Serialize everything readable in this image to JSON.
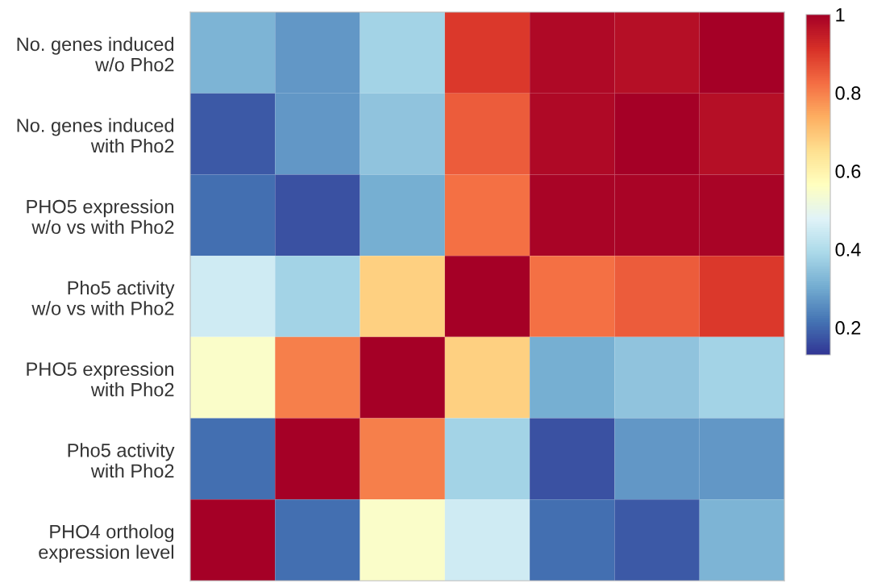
{
  "chart_data": {
    "type": "heatmap",
    "categories": [
      null,
      null,
      null,
      null,
      null,
      null,
      null
    ],
    "y_categories": [
      "No. genes induced\nw/o Pho2",
      "No. genes induced\nwith Pho2",
      "PHO5 expression\nw/o vs with Pho2",
      "Pho5 activity\nw/o vs with Pho2",
      "PHO5 expression\nwith Pho2",
      "Pho5 activity\nwith Pho2",
      "PHO4 ortholog\nexpression level"
    ],
    "cells": [
      [
        0.32,
        0.27,
        0.38,
        0.9,
        0.98,
        0.97,
        1.0
      ],
      [
        0.18,
        0.27,
        0.35,
        0.85,
        0.98,
        1.0,
        0.97
      ],
      [
        0.21,
        0.17,
        0.31,
        0.82,
        0.99,
        0.99,
        0.99
      ],
      [
        0.45,
        0.38,
        0.68,
        1.0,
        0.82,
        0.85,
        0.9
      ],
      [
        0.55,
        0.8,
        1.0,
        0.68,
        0.31,
        0.35,
        0.38
      ],
      [
        0.21,
        1.0,
        0.8,
        0.38,
        0.17,
        0.27,
        0.27
      ],
      [
        1.0,
        0.21,
        0.55,
        0.45,
        0.21,
        0.18,
        0.32
      ]
    ],
    "clim": [
      0.13,
      1
    ],
    "cticks": [
      0.2,
      0.4,
      0.6,
      0.8,
      1
    ]
  }
}
